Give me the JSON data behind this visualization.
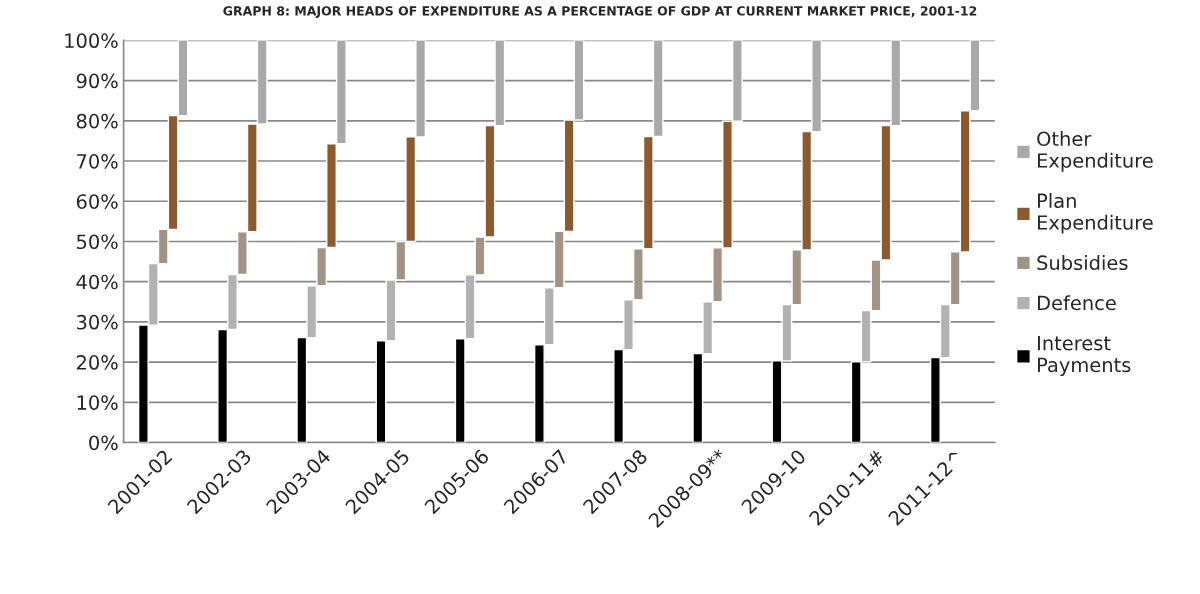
{
  "chart_data": {
    "type": "bar",
    "stacked": true,
    "title": "GRAPH 8: MAJOR HEADS OF EXPENDITURE AS A PERCENTAGE OF GDP AT CURRENT MARKET PRICE, 2001-12",
    "categories": [
      "2001-02",
      "2002-03",
      "2003-04",
      "2004-05",
      "2005-06",
      "2006-07",
      "2007-08",
      "2008-09**",
      "2009-10",
      "2010-11#",
      "2011-12^"
    ],
    "series": [
      {
        "name": "Interest Payments",
        "color": "#000000",
        "values": [
          29.2,
          28.1,
          26.1,
          25.3,
          25.8,
          24.3,
          23.1,
          22.1,
          20.3,
          20.1,
          21.1
        ]
      },
      {
        "name": "Defence",
        "color": "#b2b2b2",
        "values": [
          15.3,
          13.7,
          12.9,
          15.1,
          15.9,
          14.2,
          12.4,
          12.9,
          14.0,
          12.7,
          13.2
        ]
      },
      {
        "name": "Subsidies",
        "color": "#a39384",
        "values": [
          8.5,
          10.6,
          9.5,
          9.6,
          9.4,
          14.0,
          12.7,
          13.4,
          13.6,
          12.6,
          13.1
        ]
      },
      {
        "name": "Plan Expenditure",
        "color": "#8c5a2c",
        "values": [
          28.3,
          26.8,
          25.8,
          26.0,
          27.7,
          27.7,
          27.9,
          31.5,
          29.4,
          33.4,
          35.1
        ]
      },
      {
        "name": "Other Expenditure",
        "color": "#a9a9ab",
        "values": [
          18.7,
          20.8,
          25.7,
          24.0,
          21.2,
          19.8,
          23.9,
          20.1,
          22.7,
          21.2,
          17.5
        ]
      }
    ],
    "ylim": [
      0,
      100
    ],
    "yticks": [
      {
        "value": 0,
        "label": "0%"
      },
      {
        "value": 10,
        "label": "10%"
      },
      {
        "value": 20,
        "label": "20%"
      },
      {
        "value": 30,
        "label": "30%"
      },
      {
        "value": 40,
        "label": "40%"
      },
      {
        "value": 50,
        "label": "50%"
      },
      {
        "value": 60,
        "label": "60%"
      },
      {
        "value": 70,
        "label": "70%"
      },
      {
        "value": 80,
        "label": "80%"
      },
      {
        "value": 90,
        "label": "90%"
      },
      {
        "value": 100,
        "label": "100%"
      }
    ],
    "grid": "y",
    "legend": "right"
  }
}
